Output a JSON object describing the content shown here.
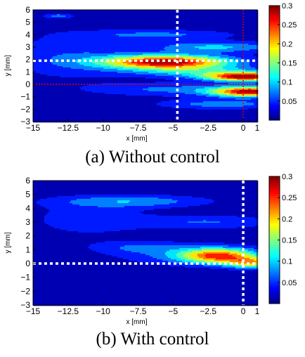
{
  "figure": {
    "caption_a": "(a) Without control",
    "caption_b": "(b) With control"
  },
  "chart_data": [
    {
      "type": "heatmap",
      "title": "",
      "caption": "(a) Without control",
      "xlabel": "x [mm]",
      "ylabel": "y [mm]",
      "xlim": [
        -15,
        1
      ],
      "ylim": [
        -3,
        6
      ],
      "xticks": [
        -15,
        -12.5,
        -10,
        -7.5,
        -5,
        -2.5,
        0,
        1
      ],
      "xtick_labels": [
        "−15",
        "−12.5",
        "−10",
        "−7.5",
        "−5",
        "−2.5",
        "0",
        "1"
      ],
      "yticks": [
        -3,
        -2,
        -1,
        0,
        1,
        2,
        3,
        4,
        5,
        6
      ],
      "ytick_labels": [
        "−3",
        "−2",
        "−1",
        "0",
        "1",
        "2",
        "3",
        "4",
        "5",
        "6"
      ],
      "colorbar": {
        "min": 0,
        "max": 0.3,
        "ticks": [
          0.05,
          0.1,
          0.15,
          0.2,
          0.25,
          0.3
        ],
        "tick_labels": [
          "0.05",
          "0.1",
          "0.15",
          "0.2",
          "0.25",
          "0.3"
        ]
      },
      "blobs": [
        {
          "x": -5.5,
          "y": 1.8,
          "sx": 4.5,
          "sy": 0.55,
          "a": 0.29
        },
        {
          "x": 0.2,
          "y": 0.6,
          "sx": 2.8,
          "sy": 0.35,
          "a": 0.28
        },
        {
          "x": 0.6,
          "y": -0.6,
          "sx": 2.8,
          "sy": 0.4,
          "a": 0.27
        },
        {
          "x": -3.0,
          "y": 1.0,
          "sx": 5.0,
          "sy": 0.45,
          "a": 0.09
        },
        {
          "x": -2.0,
          "y": 3.0,
          "sx": 4.5,
          "sy": 0.45,
          "a": 0.09
        },
        {
          "x": -6.0,
          "y": 4.0,
          "sx": 5.5,
          "sy": 0.4,
          "a": 0.06
        },
        {
          "x": -5.0,
          "y": -0.4,
          "sx": 6.0,
          "sy": 0.55,
          "a": 0.06
        },
        {
          "x": -12.5,
          "y": 2.2,
          "sx": 4.5,
          "sy": 1.8,
          "a": 0.05
        },
        {
          "x": -13.2,
          "y": 5.5,
          "sx": 1.0,
          "sy": 0.2,
          "a": 0.07
        },
        {
          "x": -1.5,
          "y": -1.6,
          "sx": 4.5,
          "sy": 0.4,
          "a": 0.07
        }
      ],
      "guide_lines": {
        "white_vertical_x": -4.7,
        "white_horizontal_y": 1.9,
        "red_vertical_x": 0,
        "red_horizontal_y": 0
      }
    },
    {
      "type": "heatmap",
      "title": "",
      "caption": "(b) With control",
      "xlabel": "x [mm]",
      "ylabel": "y [mm]",
      "xlim": [
        -15,
        1
      ],
      "ylim": [
        -3,
        6
      ],
      "xticks": [
        -15,
        -12.5,
        -10,
        -7.5,
        -5,
        -2.5,
        0,
        1
      ],
      "xtick_labels": [
        "−15",
        "−12.5",
        "−10",
        "−7.5",
        "−5",
        "−2.5",
        "0",
        "1"
      ],
      "yticks": [
        -3,
        -2,
        -1,
        0,
        1,
        2,
        3,
        4,
        5,
        6
      ],
      "ytick_labels": [
        "−3",
        "−2",
        "−1",
        "0",
        "1",
        "2",
        "3",
        "4",
        "5",
        "6"
      ],
      "colorbar": {
        "min": 0,
        "max": 0.3,
        "ticks": [
          0.05,
          0.1,
          0.15,
          0.2,
          0.25,
          0.3
        ],
        "tick_labels": [
          "0.05",
          "0.1",
          "0.15",
          "0.2",
          "0.25",
          "0.3"
        ]
      },
      "blobs": [
        {
          "x": -1.8,
          "y": 0.55,
          "sx": 2.6,
          "sy": 0.55,
          "a": 0.2
        },
        {
          "x": 0.6,
          "y": 0.05,
          "sx": 1.7,
          "sy": 0.4,
          "a": 0.16
        },
        {
          "x": -3.5,
          "y": 0.6,
          "sx": 5.5,
          "sy": 0.7,
          "a": 0.06
        },
        {
          "x": -8.0,
          "y": 4.5,
          "sx": 5.5,
          "sy": 0.45,
          "a": 0.075
        },
        {
          "x": -2.5,
          "y": 3.0,
          "sx": 5.0,
          "sy": 0.5,
          "a": 0.055
        },
        {
          "x": -11.0,
          "y": 3.2,
          "sx": 4.5,
          "sy": 1.3,
          "a": 0.04
        },
        {
          "x": -7.5,
          "y": 1.2,
          "sx": 3.5,
          "sy": 0.45,
          "a": 0.045
        }
      ],
      "guide_lines": {
        "white_vertical_x": 0,
        "white_horizontal_y": 0
      }
    }
  ]
}
